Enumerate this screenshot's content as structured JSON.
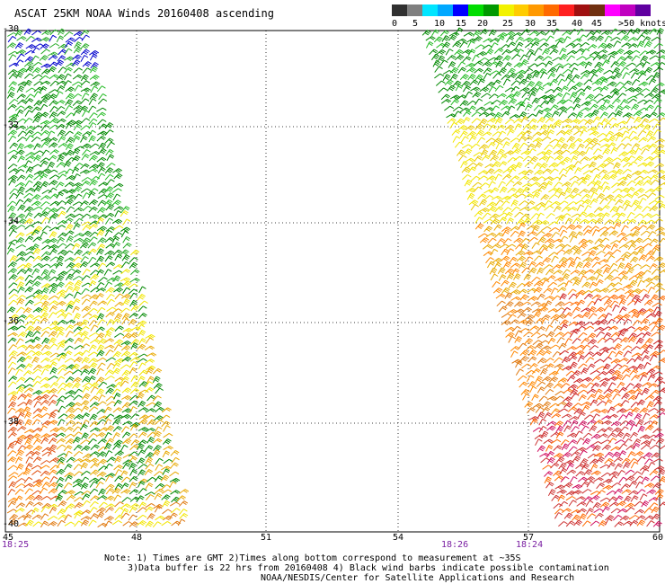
{
  "title": "ASCAT 25KM NOAA Winds 20160408 ascending",
  "legend": {
    "labels": [
      "0",
      "5",
      "10",
      "15",
      "20",
      "25",
      "30",
      "35",
      "40",
      "45",
      ">50 knots"
    ],
    "colors": [
      "#303030",
      "#7f7f7f",
      "#00e5ff",
      "#00a8ff",
      "#0000ff",
      "#00dd00",
      "#009900",
      "#f2f200",
      "#ffcc00",
      "#ff9900",
      "#ff6a00",
      "#ff2020",
      "#a01010",
      "#703010",
      "#ff00ff",
      "#c000c0",
      "#6000a0"
    ]
  },
  "axes": {
    "lat_labels": [
      "-30",
      "-32",
      "-34",
      "-36",
      "-38",
      "-40"
    ],
    "lon_labels": [
      "45",
      "48",
      "51",
      "54",
      "57",
      "60"
    ]
  },
  "time_labels": [
    {
      "text": "18:25",
      "lon": "45"
    },
    {
      "text": "18:26",
      "lon": "55.2"
    },
    {
      "text": "18:24",
      "lon": "57"
    }
  ],
  "notes": {
    "line1": "Note: 1) Times are GMT 2)Times along bottom correspond to measurement at ~35S",
    "line2": "3)Data buffer is 22 hrs from 20160408 4) Black wind barbs indicate possible contamination",
    "line3": "NOAA/NESDIS/Center for Satellite Applications and Research"
  }
}
